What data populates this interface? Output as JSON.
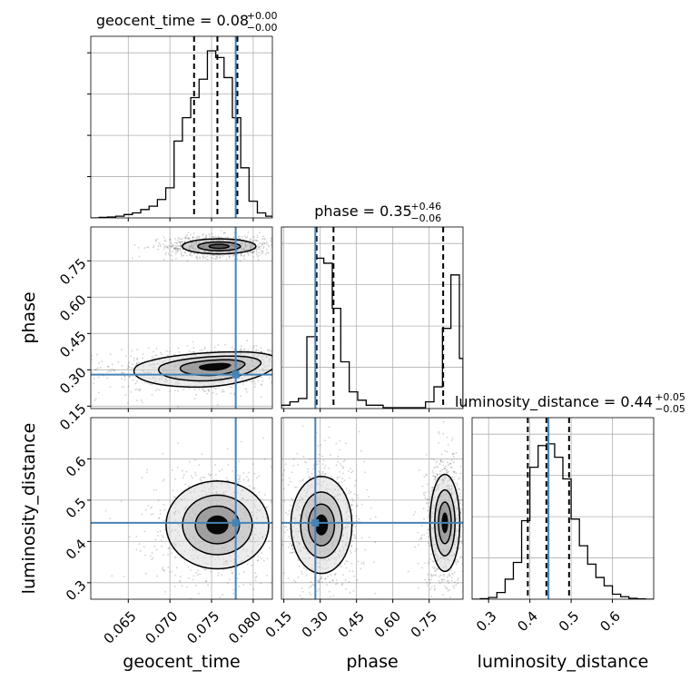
{
  "chart_data": {
    "type": "corner",
    "parameters": [
      "geocent_time",
      "phase",
      "luminosity_distance"
    ],
    "truths": {
      "geocent_time": 0.0779,
      "phase": 0.28,
      "luminosity_distance": 0.445
    },
    "titles": [
      {
        "param": "geocent_time",
        "text": "geocent_time = 0.08",
        "plus": "+0.00",
        "minus": "−0.00"
      },
      {
        "param": "phase",
        "text": "phase = 0.35",
        "plus": "+0.46",
        "minus": "−0.06"
      },
      {
        "param": "luminosity_distance",
        "text": "luminosity_distance = 0.44",
        "plus": "+0.05",
        "minus": "−0.05"
      }
    ],
    "axes": {
      "geocent_time": {
        "range": [
          0.0605,
          0.0823
        ],
        "ticks": [
          0.065,
          0.07,
          0.075,
          0.08
        ],
        "tick_labels": [
          "0.065",
          "0.070",
          "0.075",
          "0.080"
        ]
      },
      "phase": {
        "range": [
          0.14,
          0.89
        ],
        "ticks": [
          0.15,
          0.3,
          0.45,
          0.6,
          0.75
        ],
        "tick_labels": [
          "0.15",
          "0.30",
          "0.45",
          "0.60",
          "0.75"
        ]
      },
      "luminosity_distance": {
        "range": [
          0.26,
          0.7
        ],
        "ticks": [
          0.3,
          0.4,
          0.5,
          0.6
        ],
        "tick_labels": [
          "0.3",
          "0.4",
          "0.5",
          "0.6"
        ]
      }
    },
    "histograms": {
      "geocent_time": {
        "bin_edges": [
          0.0605,
          0.0615,
          0.0625,
          0.0635,
          0.0645,
          0.0655,
          0.0665,
          0.0675,
          0.0685,
          0.0695,
          0.0705,
          0.0715,
          0.0725,
          0.0735,
          0.0745,
          0.0755,
          0.0765,
          0.0775,
          0.0785,
          0.0795,
          0.0805,
          0.0815,
          0.0823
        ],
        "counts": [
          0,
          0.003,
          0.005,
          0.01,
          0.02,
          0.03,
          0.05,
          0.07,
          0.11,
          0.18,
          0.46,
          0.6,
          0.72,
          0.83,
          1.0,
          0.96,
          0.84,
          0.6,
          0.3,
          0.1,
          0.03,
          0.01
        ],
        "quantiles": [
          0.0729,
          0.0757,
          0.0781
        ]
      },
      "phase": {
        "bin_edges": [
          0.14,
          0.175,
          0.21,
          0.245,
          0.28,
          0.315,
          0.35,
          0.385,
          0.42,
          0.455,
          0.49,
          0.525,
          0.56,
          0.595,
          0.63,
          0.665,
          0.7,
          0.735,
          0.77,
          0.805,
          0.84,
          0.875,
          0.89
        ],
        "counts": [
          0.02,
          0.04,
          0.06,
          0.43,
          0.9,
          0.87,
          0.6,
          0.28,
          0.1,
          0.05,
          0.02,
          0.02,
          0.005,
          0.005,
          0.005,
          0.005,
          0.005,
          0.04,
          0.13,
          0.48,
          0.8,
          0.3
        ],
        "quantiles": [
          0.285,
          0.355,
          0.808
        ]
      },
      "luminosity_distance": {
        "bin_edges": [
          0.26,
          0.28,
          0.3,
          0.32,
          0.34,
          0.36,
          0.38,
          0.4,
          0.42,
          0.44,
          0.46,
          0.48,
          0.5,
          0.52,
          0.54,
          0.56,
          0.58,
          0.6,
          0.62,
          0.64,
          0.66,
          0.68,
          0.7
        ],
        "counts": [
          0,
          0.003,
          0.01,
          0.04,
          0.12,
          0.22,
          0.47,
          0.79,
          0.92,
          0.93,
          0.85,
          0.72,
          0.48,
          0.32,
          0.21,
          0.13,
          0.08,
          0.03,
          0.015,
          0.005,
          0.002,
          0
        ],
        "quantiles": [
          0.395,
          0.44,
          0.495
        ]
      }
    },
    "contours_2d": [
      {
        "x": "geocent_time",
        "y": "phase",
        "modes": [
          {
            "cx": 0.0757,
            "cy": 0.315,
            "sx": 0.0026,
            "sy": 0.022,
            "sx_left": 0.0036,
            "sy_down": 0.032,
            "tilt": 0.35,
            "levels": [
              0.6,
              1.2,
              1.9,
              2.7
            ]
          },
          {
            "cx": 0.0759,
            "cy": 0.81,
            "sx": 0.0017,
            "sy": 0.012,
            "sx_left": 0.0017,
            "sy_down": 0.012,
            "tilt": 0.0,
            "levels": [
              0.7,
              1.5,
              2.6
            ]
          }
        ]
      },
      {
        "x": "geocent_time",
        "y": "luminosity_distance",
        "modes": [
          {
            "cx": 0.0757,
            "cy": 0.44,
            "sx": 0.0022,
            "sy": 0.038,
            "sx_left": 0.0022,
            "sy_down": 0.038,
            "tilt": 0.0,
            "levels": [
              0.6,
              1.2,
              1.9,
              2.8
            ]
          }
        ]
      },
      {
        "x": "phase",
        "y": "luminosity_distance",
        "modes": [
          {
            "cx": 0.305,
            "cy": 0.44,
            "sx": 0.045,
            "sy": 0.042,
            "sx_left": 0.045,
            "sy_down": 0.042,
            "tilt": 0.0,
            "levels": [
              0.6,
              1.2,
              1.9,
              2.8
            ]
          },
          {
            "cx": 0.815,
            "cy": 0.445,
            "sx": 0.022,
            "sy": 0.042,
            "sx_left": 0.022,
            "sy_down": 0.042,
            "tilt": 0.0,
            "levels": [
              0.6,
              1.2,
              1.9,
              2.8
            ]
          }
        ]
      }
    ],
    "colors": {
      "truth": "#4682b4",
      "hist": "#000000",
      "contour": "#000000",
      "points": "#000000",
      "grid": "#b0b0b0",
      "density_fill": "#000000"
    },
    "grid": true
  }
}
